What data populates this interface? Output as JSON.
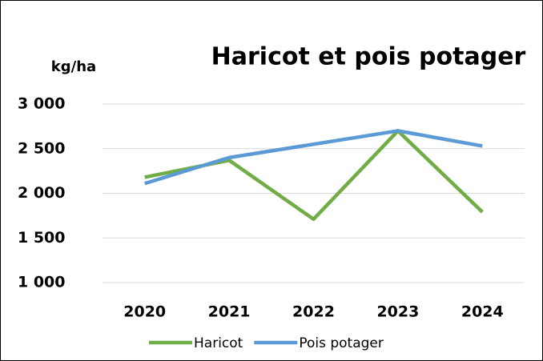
{
  "chart_data": {
    "type": "line",
    "title": "Haricot et pois potager",
    "y_label": "kg/ha",
    "categories": [
      "2020",
      "2021",
      "2022",
      "2023",
      "2024"
    ],
    "series": [
      {
        "name": "Haricot",
        "color": "#70ad47",
        "values": [
          2180,
          2370,
          1710,
          2700,
          1790
        ]
      },
      {
        "name": "Pois potager",
        "color": "#5b9bd5",
        "values": [
          2110,
          2400,
          2550,
          2700,
          2530
        ]
      }
    ],
    "ylim": [
      1000,
      3000
    ],
    "yticks": [
      {
        "value": 1000,
        "label": "1 000"
      },
      {
        "value": 1500,
        "label": "1 500"
      },
      {
        "value": 2000,
        "label": "2 000"
      },
      {
        "value": 2500,
        "label": "2 500"
      },
      {
        "value": 3000,
        "label": "3 000"
      }
    ],
    "grid": true,
    "legend": "bottom"
  }
}
